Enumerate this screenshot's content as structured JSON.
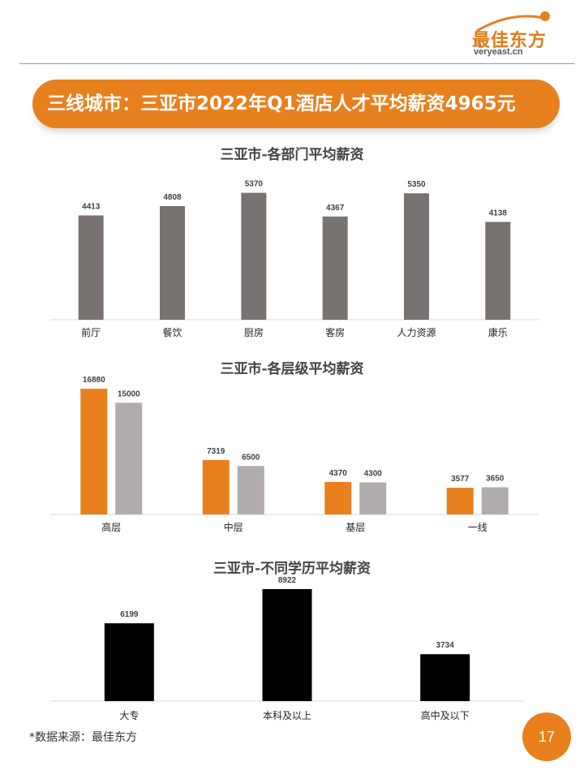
{
  "brand": {
    "name": "最佳东方",
    "url": "veryeast.cn",
    "color": "#e8801e"
  },
  "banner": {
    "title": "三线城市：三亚市2022年Q1酒店人才平均薪资4965元"
  },
  "chart_data": [
    {
      "type": "bar",
      "title": "三亚市-各部门平均薪资",
      "categories": [
        "前厅",
        "餐饮",
        "厨房",
        "客房",
        "人力资源",
        "康乐"
      ],
      "values": [
        4413,
        4808,
        5370,
        4367,
        5350,
        4138
      ],
      "ylim": [
        0,
        5700
      ],
      "colors": [
        "#787271"
      ],
      "grid": false,
      "legend": "none"
    },
    {
      "type": "bar",
      "title": "三亚市-各层级平均薪资",
      "categories": [
        "高层",
        "中层",
        "基层",
        "一线"
      ],
      "series": [
        {
          "values": [
            16880,
            7319,
            4370,
            3577
          ]
        },
        {
          "values": [
            15000,
            6500,
            4300,
            3650
          ]
        }
      ],
      "ylim": [
        0,
        17000
      ],
      "colors": [
        "#e8801e",
        "#b0acab"
      ],
      "grid": false,
      "legend": "none"
    },
    {
      "type": "bar",
      "title": "三亚市-不同学历平均薪资",
      "categories": [
        "大专",
        "本科及以上",
        "高中及以下"
      ],
      "values": [
        6199,
        8922,
        3734
      ],
      "ylim": [
        0,
        8922
      ],
      "colors": [
        "#000000"
      ],
      "grid": false,
      "legend": "none"
    }
  ],
  "footer": {
    "source": "*数据来源：最佳东方",
    "page_number": "17"
  }
}
